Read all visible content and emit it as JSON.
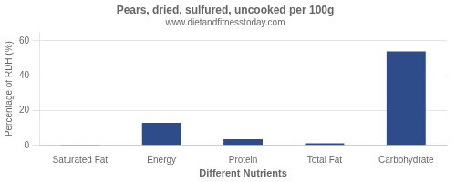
{
  "chart_data": {
    "type": "bar",
    "title": "Pears, dried, sulfured, uncooked per 100g",
    "subtitle": "www.dietandfitnesstoday.com",
    "xlabel": "Different Nutrients",
    "ylabel": "Percentage of RDH (%)",
    "categories": [
      "Saturated Fat",
      "Energy",
      "Protein",
      "Total Fat",
      "Carbohydrate"
    ],
    "values": [
      0.2,
      13.0,
      3.5,
      1.2,
      54.0
    ],
    "color": "#2e4b8a",
    "ylim": [
      0,
      65
    ],
    "yticks": [
      0,
      20,
      40,
      60
    ],
    "grid": true
  }
}
